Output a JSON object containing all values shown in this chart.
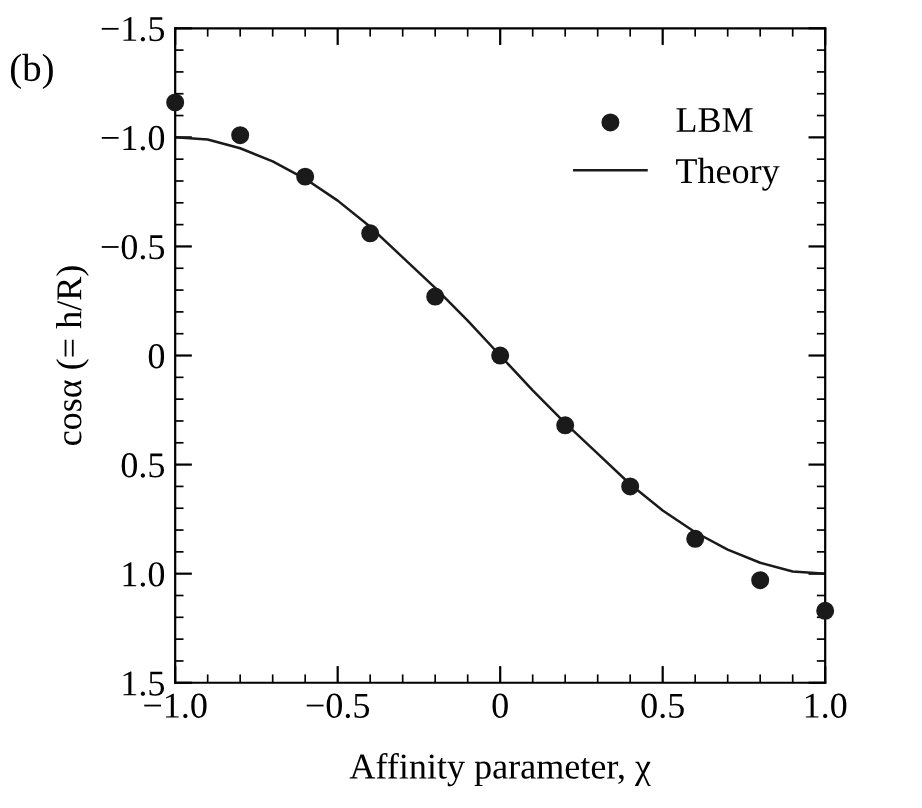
{
  "chart_data": {
    "type": "scatter",
    "xlabel": "Affinity parameter, χ",
    "ylabel": "cosα (= h/R)",
    "annotations": [
      "(b)"
    ],
    "series": [
      {
        "name": "LBM",
        "color": "#1a1a1a",
        "marker": "circle",
        "x": [
          -1.0,
          -0.8,
          -0.6,
          -0.4,
          -0.2,
          0.0,
          0.2,
          0.4,
          0.6,
          0.8,
          1.0
        ],
        "values": [
          -1.16,
          -1.01,
          -0.82,
          -0.56,
          -0.27,
          0.0,
          0.32,
          0.6,
          0.84,
          1.03,
          1.17
        ]
      },
      {
        "name": "Theory",
        "type": "line",
        "color": "#1a1a1a",
        "line_style": "solid",
        "x": [
          -1.0,
          -0.9,
          -0.8,
          -0.7,
          -0.6,
          -0.5,
          -0.4,
          -0.3,
          -0.2,
          -0.1,
          0.0,
          0.1,
          0.2,
          0.3,
          0.4,
          0.5,
          0.6,
          0.7,
          0.8,
          0.9,
          1.0
        ],
        "values": [
          -1.0,
          -0.99,
          -0.95,
          -0.89,
          -0.81,
          -0.71,
          -0.59,
          -0.45,
          -0.31,
          -0.16,
          0.0,
          0.16,
          0.31,
          0.45,
          0.59,
          0.71,
          0.81,
          0.89,
          0.95,
          0.99,
          1.0
        ]
      }
    ],
    "xlim": [
      -1.0,
      1.0
    ],
    "ylim": [
      1.5,
      -1.5
    ],
    "xticks": [
      {
        "value": -1.0,
        "label": "−1.0"
      },
      {
        "value": -0.5,
        "label": "−0.5"
      },
      {
        "value": 0,
        "label": "0"
      },
      {
        "value": 0.5,
        "label": "0.5"
      },
      {
        "value": 1.0,
        "label": "1.0"
      }
    ],
    "yticks": [
      {
        "value": -1.5,
        "label": "−1.5"
      },
      {
        "value": -1.0,
        "label": "−1.0"
      },
      {
        "value": -0.5,
        "label": "−0.5"
      },
      {
        "value": 0,
        "label": "0"
      },
      {
        "value": 0.5,
        "label": "0.5"
      },
      {
        "value": 1.0,
        "label": "1.0"
      },
      {
        "value": 1.5,
        "label": "1.5"
      }
    ],
    "grid": false,
    "legend": "top right"
  }
}
